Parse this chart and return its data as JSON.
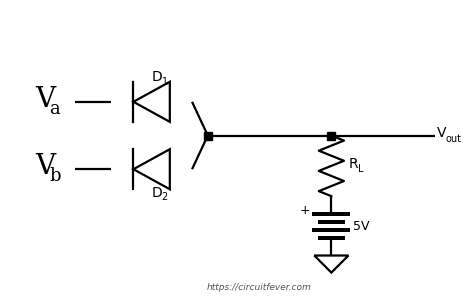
{
  "bg_color": "#ffffff",
  "line_color": "#000000",
  "line_width": 1.6,
  "dot_size": 5,
  "Va_label_V": "V",
  "Va_label_sub": "a",
  "Vb_label_V": "V",
  "Vb_label_sub": "b",
  "D1_label": "D",
  "D1_sub": "1",
  "D2_label": "D",
  "D2_sub": "2",
  "RL_label": "R",
  "RL_sub": "L",
  "Vout_V": "V",
  "Vout_sub": "out",
  "V5_label": "5V",
  "plus_label": "+",
  "url_label": "https://circuitfever.com",
  "figsize": [
    4.74,
    2.98
  ],
  "dpi": 100
}
